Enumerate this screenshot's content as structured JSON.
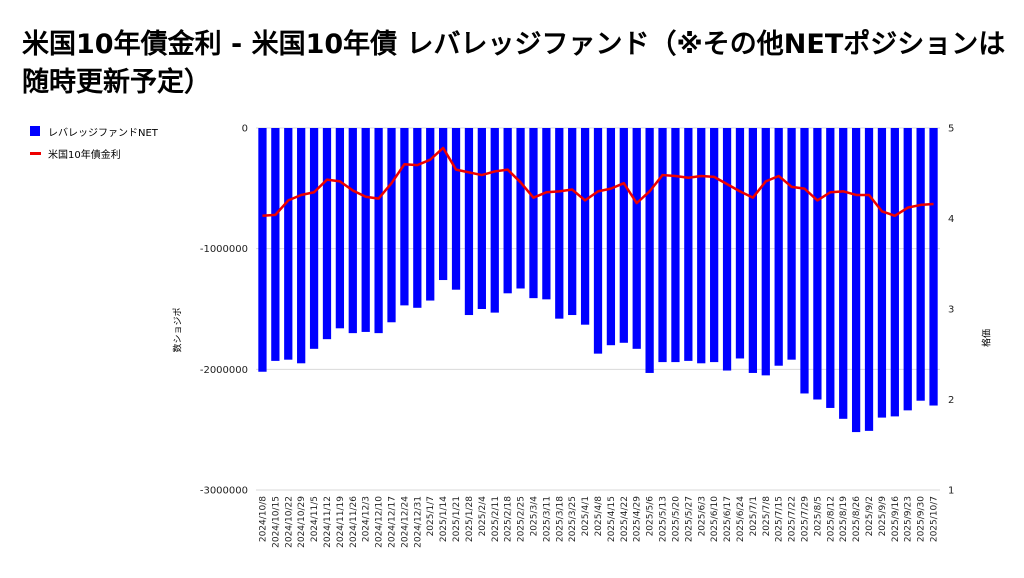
{
  "title": "米国10年債金利 - 米国10年債 レバレッジファンド（※その他NETポジションは随時更新予定）",
  "chart_data": {
    "type": "bar",
    "title": "米国10年債金利 - 米国10年債 レバレッジファンド（※その他NETポジションは随時更新予定）",
    "ylabel": "数ショジポ",
    "y2label": "格価",
    "ylim": [
      -3000000,
      0
    ],
    "y2lim": [
      1,
      5
    ],
    "yticks": [
      "0",
      "-1000000",
      "-2000000",
      "-3000000"
    ],
    "y2ticks": [
      "5",
      "4",
      "3",
      "2",
      "1"
    ],
    "categories": [
      "2024/10/8",
      "2024/10/15",
      "2024/10/22",
      "2024/10/29",
      "2024/11/5",
      "2024/11/12",
      "2024/11/19",
      "2024/11/26",
      "2024/12/3",
      "2024/12/10",
      "2024/12/17",
      "2024/12/24",
      "2024/12/31",
      "2025/1/7",
      "2025/1/14",
      "2025/1/21",
      "2025/1/28",
      "2025/2/4",
      "2025/2/11",
      "2025/2/18",
      "2025/2/25",
      "2025/3/4",
      "2025/3/11",
      "2025/3/18",
      "2025/3/25",
      "2025/4/1",
      "2025/4/8",
      "2025/4/15",
      "2025/4/22",
      "2025/4/29",
      "2025/5/6",
      "2025/5/13",
      "2025/5/20",
      "2025/5/27",
      "2025/6/3",
      "2025/6/10",
      "2025/6/17",
      "2025/6/24",
      "2025/7/1",
      "2025/7/8",
      "2025/7/15",
      "2025/7/22",
      "2025/7/29",
      "2025/8/5",
      "2025/8/12",
      "2025/8/19",
      "2025/8/26",
      "2025/9/2",
      "2025/9/9",
      "2025/9/16",
      "2025/9/23",
      "2025/9/30",
      "2025/10/7"
    ],
    "legend_position": "top-left",
    "series": [
      {
        "name": "レバレッジファンドNET",
        "kind": "bar",
        "axis": "left",
        "color": "#0000ff",
        "values": [
          -2020000,
          -1930000,
          -1920000,
          -1950000,
          -1830000,
          -1750000,
          -1660000,
          -1700000,
          -1690000,
          -1700000,
          -1610000,
          -1470000,
          -1490000,
          -1430000,
          -1260000,
          -1340000,
          -1550000,
          -1500000,
          -1530000,
          -1370000,
          -1330000,
          -1410000,
          -1420000,
          -1580000,
          -1550000,
          -1630000,
          -1870000,
          -1800000,
          -1780000,
          -1830000,
          -2030000,
          -1940000,
          -1940000,
          -1930000,
          -1950000,
          -1940000,
          -2010000,
          -1910000,
          -2030000,
          -2050000,
          -1970000,
          -1920000,
          -2200000,
          -2250000,
          -2320000,
          -2410000,
          -2520000,
          -2510000,
          -2400000,
          -2390000,
          -2340000,
          -2260000,
          -2300000
        ]
      },
      {
        "name": "米国10年債金利",
        "kind": "line",
        "axis": "right",
        "color": "#ee0000",
        "values": [
          4.03,
          4.04,
          4.2,
          4.26,
          4.29,
          4.43,
          4.41,
          4.31,
          4.24,
          4.22,
          4.39,
          4.6,
          4.59,
          4.65,
          4.78,
          4.54,
          4.51,
          4.48,
          4.52,
          4.54,
          4.4,
          4.23,
          4.29,
          4.3,
          4.32,
          4.2,
          4.3,
          4.33,
          4.39,
          4.17,
          4.3,
          4.48,
          4.47,
          4.45,
          4.47,
          4.46,
          4.38,
          4.3,
          4.23,
          4.41,
          4.47,
          4.35,
          4.33,
          4.2,
          4.29,
          4.3,
          4.26,
          4.26,
          4.08,
          4.03,
          4.12,
          4.15,
          4.16
        ]
      }
    ]
  }
}
